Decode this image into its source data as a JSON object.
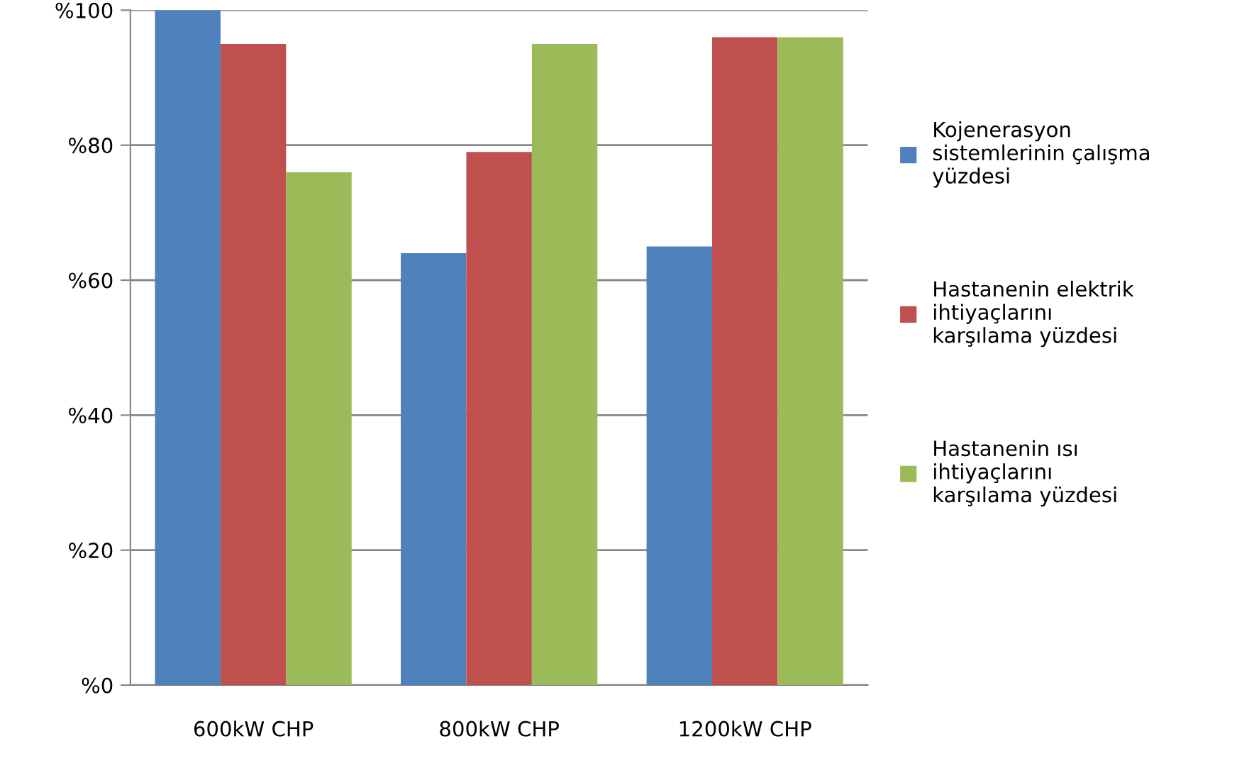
{
  "chart_data": {
    "type": "bar",
    "categories": [
      "600kW CHP",
      "800kW CHP",
      "1200kW CHP"
    ],
    "series": [
      {
        "name": "Kojenerasyon\nsistemlerinin çalışma\nyüzdesi",
        "color": "#4f81bd",
        "values": [
          100,
          64,
          65
        ]
      },
      {
        "name": "Hastanenin elektrik\nihtiyaçlarını\nkarşılama yüzdesi",
        "color": "#c0504d",
        "values": [
          95,
          79,
          96
        ]
      },
      {
        "name": "Hastanenin ısı\nihtiyaçlarını\nkarşılama yüzdesi",
        "color": "#9bbb59",
        "values": [
          76,
          95,
          96
        ]
      }
    ],
    "ylim": [
      0,
      100
    ],
    "yticks": [
      {
        "value": 0,
        "label": "%0"
      },
      {
        "value": 20,
        "label": "%20"
      },
      {
        "value": 40,
        "label": "%40"
      },
      {
        "value": 60,
        "label": "%60"
      },
      {
        "value": 80,
        "label": "%80"
      },
      {
        "value": 100,
        "label": "%100"
      }
    ],
    "grid": "y",
    "legend": "right"
  }
}
